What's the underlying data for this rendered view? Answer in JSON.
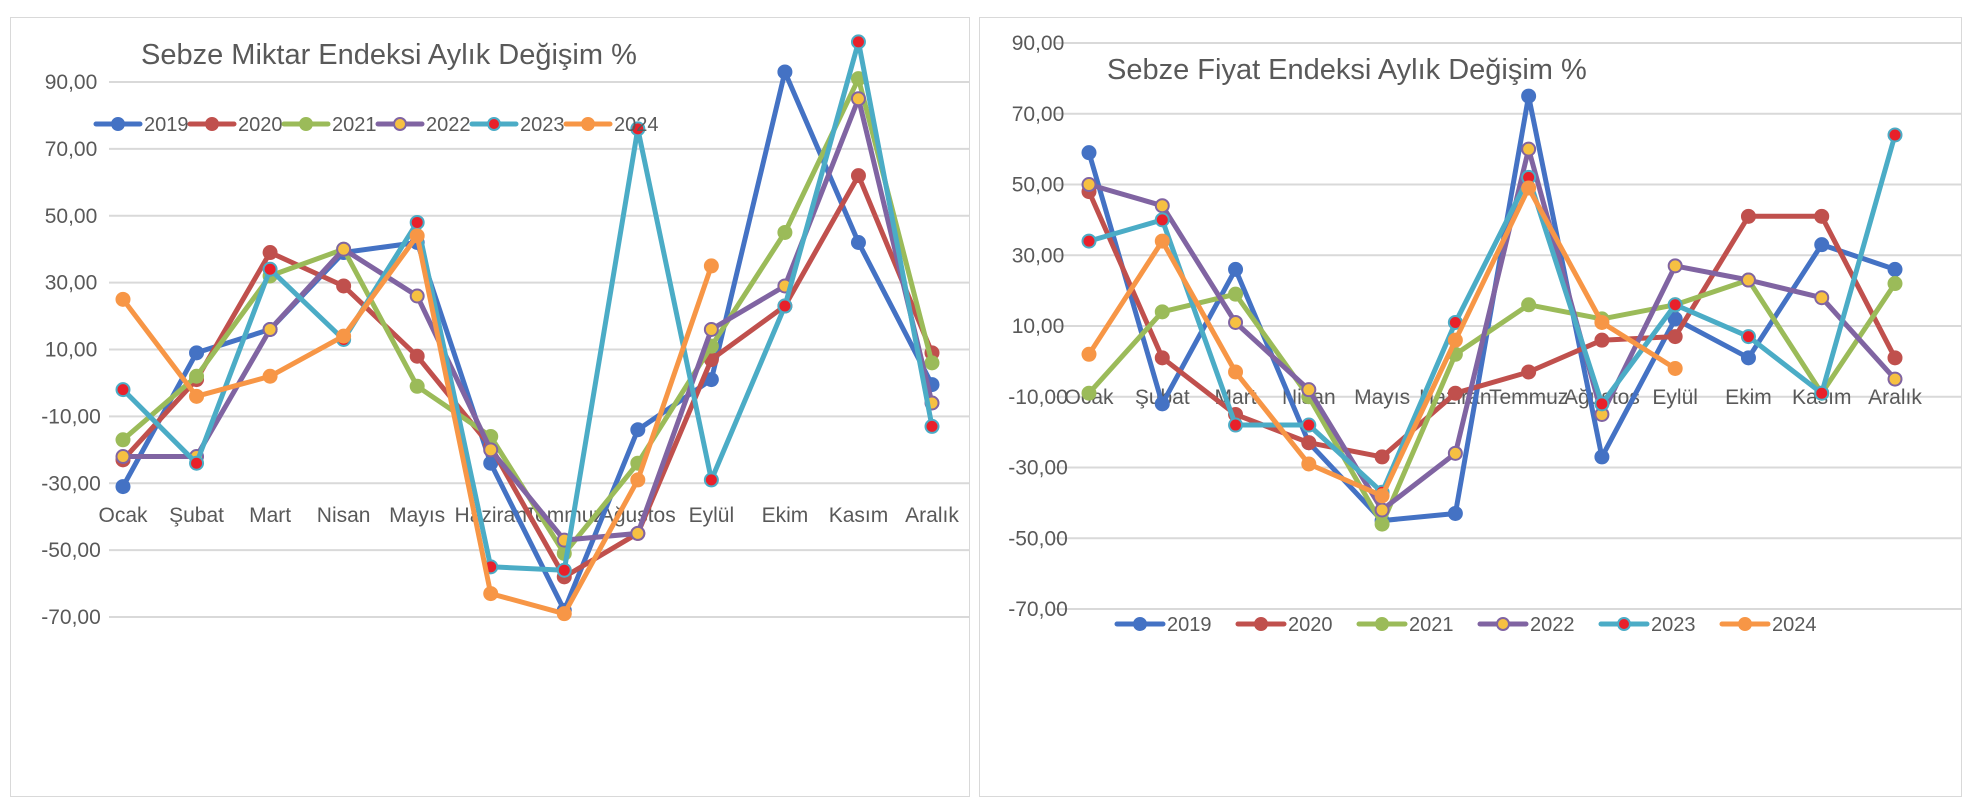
{
  "chart_data": [
    {
      "type": "line",
      "title": "Sebze Miktar Endeksi Aylık Değişim %",
      "categories": [
        "Ocak",
        "Şubat",
        "Mart",
        "Nisan",
        "Mayıs",
        "Haziran",
        "Temmuz",
        "Ağustos",
        "Eylül",
        "Ekim",
        "Kasım",
        "Aralık"
      ],
      "y_ticks": [
        "90,00",
        "70,00",
        "50,00",
        "30,00",
        "10,00",
        "-10,00",
        "-30,00",
        "-50,00",
        "-70,00"
      ],
      "ylim": [
        -70,
        90
      ],
      "grid": true,
      "legend_position": "top-left",
      "series": [
        {
          "name": "2019",
          "color": "#4472c4",
          "values": [
            -31,
            9,
            16,
            39,
            42,
            -24,
            -68,
            -14,
            1,
            93,
            42,
            -0.5
          ]
        },
        {
          "name": "2020",
          "color": "#c0504d",
          "values": [
            -23,
            1,
            39,
            29,
            8,
            -19,
            -58,
            -45,
            7,
            23,
            62,
            9
          ]
        },
        {
          "name": "2021",
          "color": "#9bbb59",
          "values": [
            -17,
            2,
            32,
            40,
            -1,
            -16,
            -51,
            -24,
            11,
            45,
            91,
            6
          ]
        },
        {
          "name": "2022",
          "color": "#8064a2",
          "values": [
            -22,
            -22,
            16,
            40,
            26,
            -20,
            -47,
            -45,
            16,
            29,
            85,
            -6
          ]
        },
        {
          "name": "2023",
          "color": "#4bacc6",
          "values": [
            -2,
            -24,
            34,
            13,
            48,
            -55,
            -56,
            76,
            -29,
            23,
            102,
            -13
          ]
        },
        {
          "name": "2024",
          "color": "#f79646",
          "values": [
            25,
            -4,
            2,
            14,
            44,
            -63,
            -69,
            -29,
            35,
            null,
            null,
            null
          ]
        }
      ],
      "marker_fills": {
        "2022": "#f6c042",
        "2023": "#e8202a"
      }
    },
    {
      "type": "line",
      "title": "Sebze Fiyat Endeksi Aylık Değişim %",
      "categories": [
        "Ocak",
        "Şubat",
        "Mart",
        "Nisan",
        "Mayıs",
        "Haziran",
        "Temmuz",
        "Ağustos",
        "Eylül",
        "Ekim",
        "Kasım",
        "Aralık"
      ],
      "y_ticks": [
        "90,00",
        "70,00",
        "50,00",
        "30,00",
        "10,00",
        "-10,00",
        "-30,00",
        "-50,00",
        "-70,00"
      ],
      "ylim": [
        -70,
        90
      ],
      "grid": true,
      "legend_position": "bottom",
      "series": [
        {
          "name": "2019",
          "color": "#4472c4",
          "values": [
            59,
            -12,
            26,
            -23,
            -45,
            -43,
            75,
            -27,
            12,
            1,
            33,
            26
          ]
        },
        {
          "name": "2020",
          "color": "#c0504d",
          "values": [
            48,
            1,
            -15,
            -23,
            -27,
            -9,
            -3,
            6,
            7,
            41,
            41,
            1
          ]
        },
        {
          "name": "2021",
          "color": "#9bbb59",
          "values": [
            -9,
            14,
            19,
            -10,
            -46,
            2,
            16,
            12,
            16,
            23,
            -9,
            22
          ]
        },
        {
          "name": "2022",
          "color": "#8064a2",
          "values": [
            50,
            44,
            11,
            -8,
            -42,
            -26,
            60,
            -15,
            27,
            23,
            18,
            -5
          ]
        },
        {
          "name": "2023",
          "color": "#4bacc6",
          "values": [
            34,
            40,
            -18,
            -18,
            -37,
            11,
            52,
            -12,
            16,
            7,
            -9,
            64
          ]
        },
        {
          "name": "2024",
          "color": "#f79646",
          "values": [
            2,
            34,
            -3,
            -29,
            -38,
            6,
            49,
            11,
            -2,
            null,
            null,
            null
          ]
        }
      ],
      "marker_fills": {
        "2022": "#f6c042",
        "2023": "#e8202a"
      }
    }
  ]
}
